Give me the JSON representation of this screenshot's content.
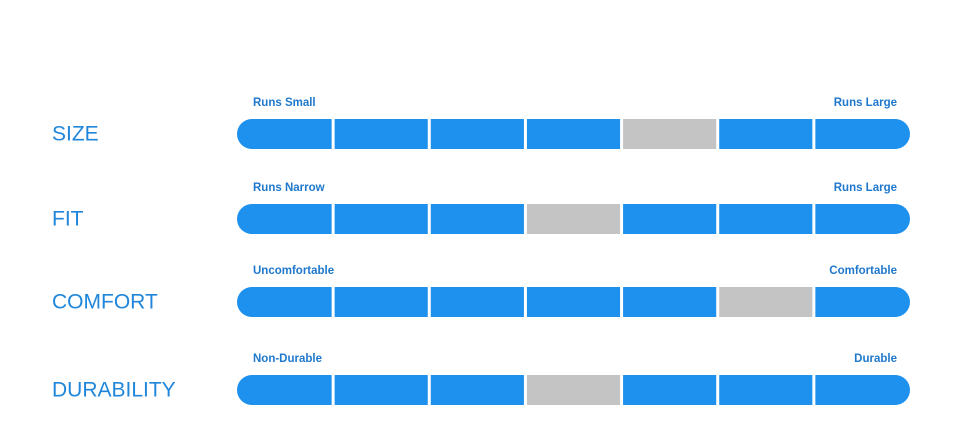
{
  "rows": [
    {
      "label": "SIZE",
      "low": "Runs Small",
      "high": "Runs Large",
      "rating": 5
    },
    {
      "label": "FIT",
      "low": "Runs Narrow",
      "high": "Runs Large",
      "rating": 4
    },
    {
      "label": "COMFORT",
      "low": "Uncomfortable",
      "high": "Comfortable",
      "rating": 6
    },
    {
      "label": "DURABILITY",
      "low": "Non-Durable",
      "high": "Durable",
      "rating": 4
    }
  ]
}
